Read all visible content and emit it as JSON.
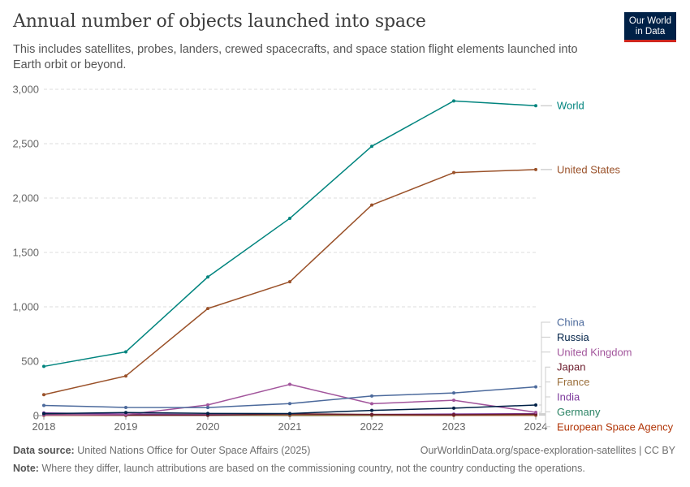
{
  "header": {
    "title": "Annual number of objects launched into space",
    "subtitle": "This includes satellites, probes, landers, crewed spacecrafts, and space station flight elements launched into Earth orbit or beyond."
  },
  "logo": {
    "line1": "Our World",
    "line2": "in Data"
  },
  "footer": {
    "source_label": "Data source:",
    "source_text": "United Nations Office for Outer Space Affairs (2025)",
    "url": "OurWorldinData.org/space-exploration-satellites | CC BY",
    "note_label": "Note:",
    "note_text": "Where they differ, launch attributions are based on the commissioning country, not the country conducting the operations."
  },
  "chart_data": {
    "type": "line",
    "x": [
      2018,
      2019,
      2020,
      2021,
      2022,
      2023,
      2024
    ],
    "xlim": [
      2018,
      2024
    ],
    "ylim": [
      0,
      3000
    ],
    "yticks": [
      0,
      500,
      1000,
      1500,
      2000,
      2500,
      3000
    ],
    "ytick_labels": [
      "0",
      "500",
      "1,000",
      "1,500",
      "2,000",
      "2,500",
      "3,000"
    ],
    "xtick_labels": [
      "2018",
      "2019",
      "2020",
      "2021",
      "2022",
      "2023",
      "2024"
    ],
    "grid": true,
    "legend": "right (line labels)",
    "series": [
      {
        "name": "World",
        "color": "#00847e",
        "values": [
          452,
          586,
          1274,
          1813,
          2476,
          2893,
          2849
        ]
      },
      {
        "name": "United States",
        "color": "#9a5129",
        "values": [
          192,
          364,
          984,
          1230,
          1936,
          2234,
          2262
        ]
      },
      {
        "name": "China",
        "color": "#4c6a9c",
        "values": [
          93,
          75,
          74,
          110,
          180,
          208,
          264
        ]
      },
      {
        "name": "Russia",
        "color": "#002147",
        "values": [
          18,
          28,
          20,
          19,
          48,
          68,
          97
        ]
      },
      {
        "name": "United Kingdom",
        "color": "#a2559c",
        "values": [
          6,
          9,
          98,
          287,
          109,
          141,
          30
        ]
      },
      {
        "name": "Japan",
        "color": "#6c1c2c",
        "values": [
          10,
          4,
          3,
          16,
          10,
          7,
          12
        ]
      },
      {
        "name": "France",
        "color": "#996d39",
        "values": [
          4,
          3,
          4,
          5,
          4,
          4,
          5
        ]
      },
      {
        "name": "India",
        "color": "#7d3a9c",
        "values": [
          24,
          14,
          9,
          5,
          10,
          14,
          18
        ]
      },
      {
        "name": "Germany",
        "color": "#2c8465",
        "values": [
          10,
          4,
          2,
          3,
          3,
          8,
          15
        ]
      },
      {
        "name": "European Space Agency",
        "color": "#b13507",
        "values": [
          2,
          2,
          3,
          1,
          2,
          2,
          3
        ]
      }
    ]
  }
}
